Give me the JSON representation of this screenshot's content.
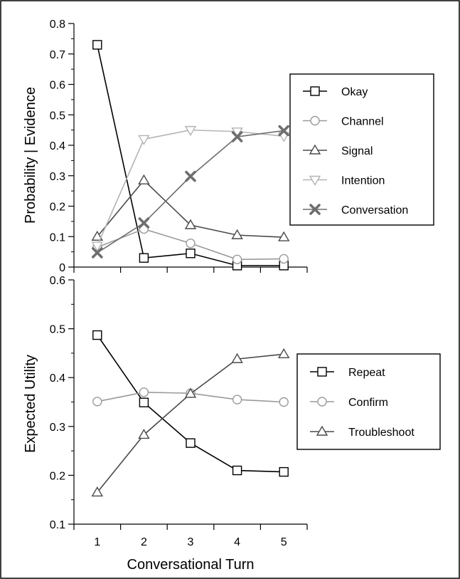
{
  "chart_data": [
    {
      "type": "line",
      "ylabel": "Probability | Evidence",
      "xlabel": "",
      "x": [
        1,
        2,
        3,
        4,
        5
      ],
      "xlim": [
        0.5,
        5.5
      ],
      "ylim": [
        0,
        0.8
      ],
      "yticks": [
        "0",
        "0.1",
        "0.2",
        "0.3",
        "0.4",
        "0.5",
        "0.6",
        "0.7",
        "0.8"
      ],
      "legend_position": "right",
      "series": [
        {
          "name": "Okay",
          "marker": "square",
          "color": "#000000",
          "values": [
            0.73,
            0.03,
            0.045,
            0.005,
            0.005
          ]
        },
        {
          "name": "Channel",
          "marker": "circle",
          "color": "#9a9a9a",
          "values": [
            0.065,
            0.125,
            0.078,
            0.025,
            0.027
          ]
        },
        {
          "name": "Signal",
          "marker": "triangle-up",
          "color": "#4a4a4a",
          "values": [
            0.1,
            0.285,
            0.138,
            0.105,
            0.098
          ]
        },
        {
          "name": "Intention",
          "marker": "triangle-down",
          "color": "#b4b4b4",
          "values": [
            0.07,
            0.42,
            0.45,
            0.445,
            0.43
          ]
        },
        {
          "name": "Conversation",
          "marker": "x",
          "color": "#6e6e6e",
          "values": [
            0.047,
            0.145,
            0.298,
            0.428,
            0.448
          ]
        }
      ]
    },
    {
      "type": "line",
      "ylabel": "Expected Utility",
      "xlabel": "Conversational Turn",
      "x": [
        1,
        2,
        3,
        4,
        5
      ],
      "xticks": [
        "1",
        "2",
        "3",
        "4",
        "5"
      ],
      "xlim": [
        0.5,
        5.5
      ],
      "ylim": [
        0.1,
        0.6
      ],
      "yticks": [
        "0.1",
        "0.2",
        "0.3",
        "0.4",
        "0.5",
        "0.6"
      ],
      "legend_position": "right",
      "series": [
        {
          "name": "Repeat",
          "marker": "square",
          "color": "#000000",
          "values": [
            0.487,
            0.349,
            0.266,
            0.21,
            0.207
          ]
        },
        {
          "name": "Confirm",
          "marker": "circle",
          "color": "#9a9a9a",
          "values": [
            0.351,
            0.37,
            0.368,
            0.355,
            0.35
          ]
        },
        {
          "name": "Troubleshoot",
          "marker": "triangle-up",
          "color": "#4a4a4a",
          "values": [
            0.165,
            0.283,
            0.367,
            0.438,
            0.448
          ]
        }
      ]
    }
  ]
}
